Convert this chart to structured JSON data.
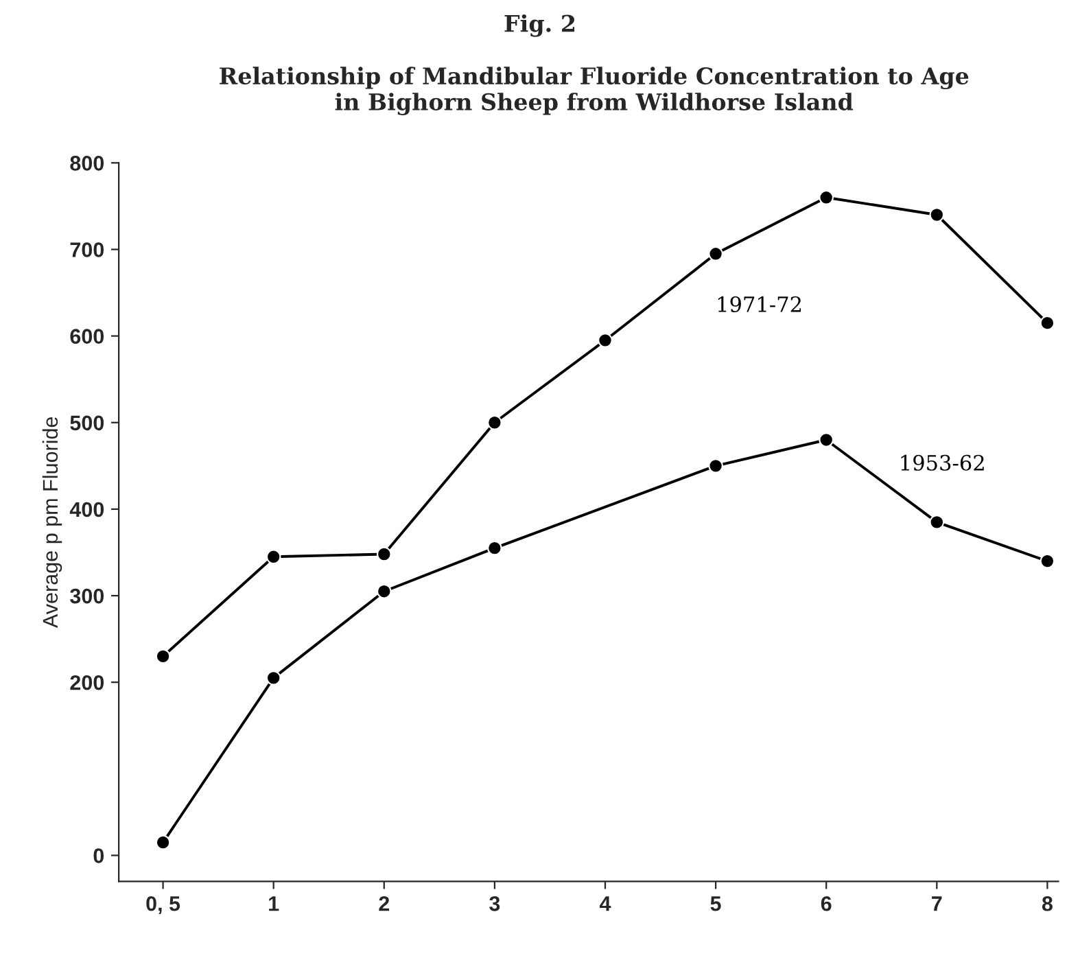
{
  "chart_data": {
    "type": "line",
    "title": "Fig. 2",
    "subtitle": "Relationship of Mandibular Fluoride Concentration to Age\nin Bighorn Sheep from Wildhorse Island",
    "ylabel": "Average p pm Fluoride",
    "categories": [
      "0, 5",
      "1",
      "2",
      "3",
      "4",
      "5",
      "6",
      "7",
      "8"
    ],
    "series": [
      {
        "name": "1971-72",
        "color": "#000000",
        "values": [
          230,
          345,
          348,
          500,
          595,
          695,
          760,
          740,
          615
        ]
      },
      {
        "name": "1953-62",
        "color": "#000000",
        "values": [
          15,
          205,
          305,
          355,
          null,
          450,
          480,
          385,
          340
        ]
      }
    ],
    "ylim": [
      -30,
      800
    ],
    "yticks": [
      0,
      200,
      300,
      400,
      500,
      600,
      700,
      800
    ],
    "marker": "circle",
    "line_style": "solid",
    "grid": false,
    "legend": false
  }
}
